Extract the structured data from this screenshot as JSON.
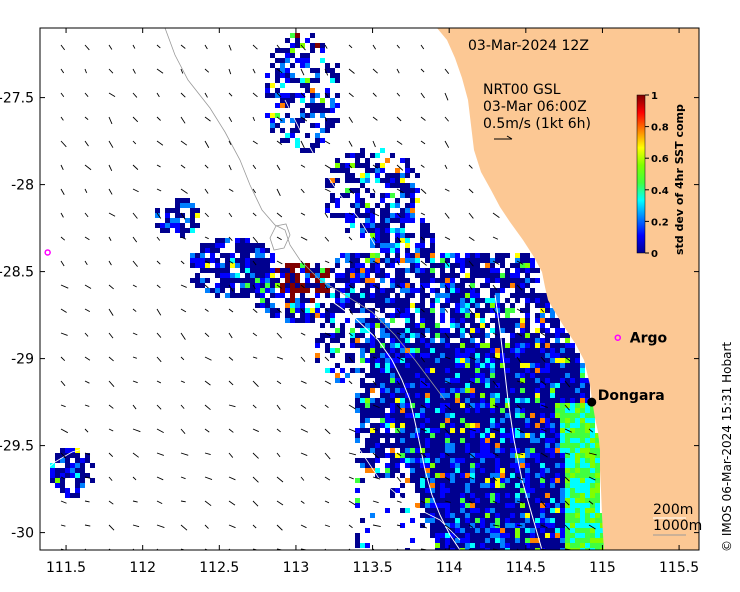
{
  "chart_data": {
    "type": "heatmap",
    "title": "03-Mar-2024 12Z",
    "x_range": [
      111.33,
      115.63
    ],
    "y_range": [
      -30.1,
      -27.1
    ],
    "x_ticks": [
      "111.5",
      "112",
      "112.5",
      "113",
      "113.5",
      "114",
      "114.5",
      "115",
      "115.5"
    ],
    "x_tick_values": [
      111.5,
      112,
      112.5,
      113,
      113.5,
      114,
      114.5,
      115,
      115.5
    ],
    "y_ticks": [
      "-27.5",
      "-28",
      "-28.5",
      "-29",
      "-29.5",
      "-30"
    ],
    "y_tick_values": [
      -27.5,
      -28,
      -28.5,
      -29,
      -29.5,
      -30
    ],
    "current_legend": {
      "lines": [
        "NRT00 GSL",
        "03-Mar 06:00Z",
        "0.5m/s (1kt 6h)"
      ]
    },
    "colorbar": {
      "title": "std dev of 4hr SST comp",
      "ticks": [
        "1",
        "0.8",
        "0.6",
        "0.4",
        "0.2",
        "0"
      ],
      "tick_values": [
        1,
        0.8,
        0.6,
        0.4,
        0.2,
        0
      ],
      "colors": [
        "#00008f",
        "#0000ff",
        "#0080ff",
        "#00ffff",
        "#40ff40",
        "#80ff00",
        "#ffff00",
        "#ff8000",
        "#ff0000",
        "#800000"
      ]
    },
    "places": [
      {
        "name": "Dongara",
        "lon": 114.93,
        "lat": -29.25,
        "marker": "black-dot"
      },
      {
        "name": "Argo",
        "lon": 115.1,
        "lat": -28.88,
        "marker": "magenta-ring"
      },
      {
        "name": "",
        "lon": 111.38,
        "lat": -28.39,
        "marker": "magenta-ring"
      }
    ],
    "contour_labels": [
      "200m",
      "1000m"
    ],
    "land_color": "#fcc894",
    "credit": "© IMOS 06-Mar-2024 15:31 Hobart"
  }
}
